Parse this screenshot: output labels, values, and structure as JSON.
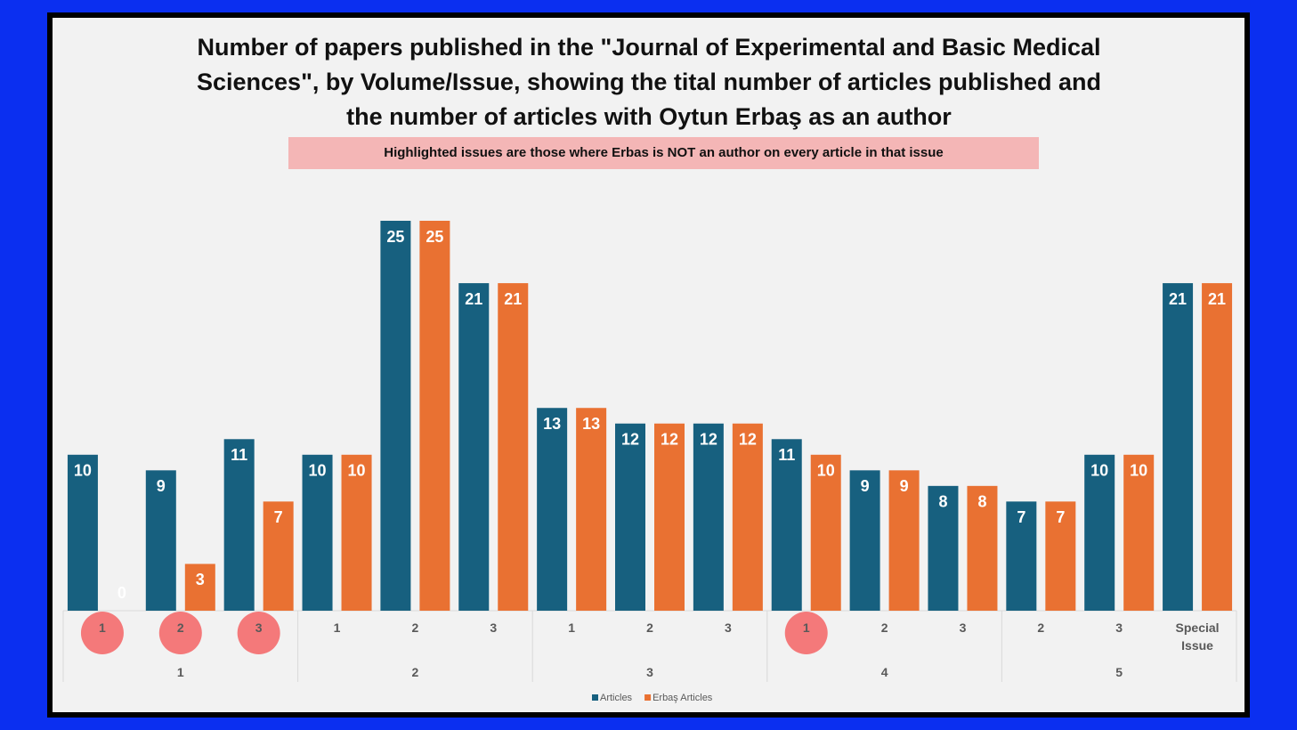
{
  "chart_data": {
    "type": "bar",
    "title": "Number of papers published in the \"Journal of Experimental and Basic Medical Sciences\", by Volume/Issue, showing the tital number of articles published and the number of articles with Oytun Erbaş as an author",
    "subtitle": "Highlighted issues are those where Erbas is NOT an author on every article in that issue",
    "groups": [
      {
        "label": "1",
        "issues": [
          "1",
          "2",
          "3"
        ]
      },
      {
        "label": "2",
        "issues": [
          "1",
          "2",
          "3"
        ]
      },
      {
        "label": "3",
        "issues": [
          "1",
          "2",
          "3"
        ]
      },
      {
        "label": "4",
        "issues": [
          "1",
          "2",
          "3"
        ]
      },
      {
        "label": "5",
        "issues": [
          "2",
          "3",
          "Special Issue"
        ]
      }
    ],
    "highlighted": [
      true,
      true,
      true,
      false,
      false,
      false,
      false,
      false,
      false,
      true,
      false,
      false,
      false,
      false,
      false
    ],
    "highlight_color": "#f4797a",
    "series": [
      {
        "name": "Articles",
        "color": "#17607f",
        "values": [
          10,
          9,
          11,
          10,
          25,
          21,
          13,
          12,
          12,
          11,
          9,
          8,
          7,
          10,
          21
        ]
      },
      {
        "name": "Erbaş Articles",
        "color": "#e97132",
        "values": [
          0,
          3,
          7,
          10,
          25,
          21,
          13,
          12,
          12,
          10,
          9,
          8,
          7,
          10,
          21
        ]
      }
    ],
    "legend": "bottom"
  }
}
